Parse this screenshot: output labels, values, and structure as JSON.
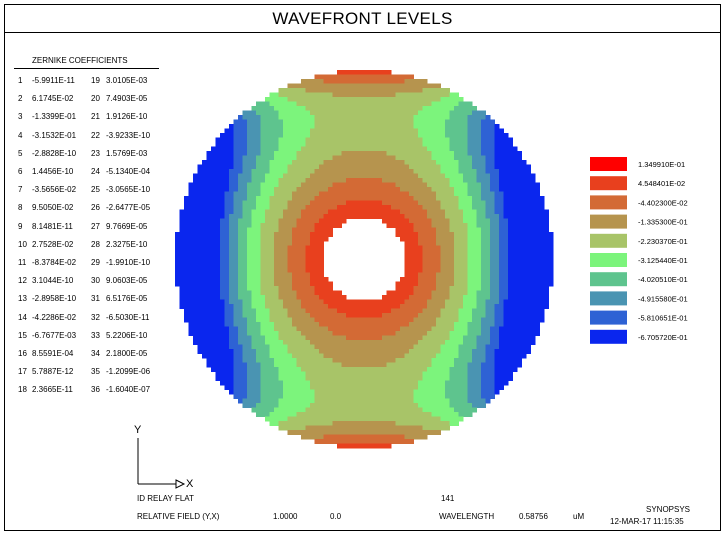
{
  "title": "WAVEFRONT LEVELS",
  "zernike": {
    "heading": "ZERNIKE COEFFICIENTS",
    "left": [
      {
        "n": "1",
        "v": "-5.9911E-11"
      },
      {
        "n": "2",
        "v": "6.1745E-02"
      },
      {
        "n": "3",
        "v": "-1.3399E-01"
      },
      {
        "n": "4",
        "v": "-3.1532E-01"
      },
      {
        "n": "5",
        "v": "-2.8828E-10"
      },
      {
        "n": "6",
        "v": "1.4456E-10"
      },
      {
        "n": "7",
        "v": "-3.5656E-02"
      },
      {
        "n": "8",
        "v": "9.5050E-02"
      },
      {
        "n": "9",
        "v": "8.1481E-11"
      },
      {
        "n": "10",
        "v": "2.7528E-02"
      },
      {
        "n": "11",
        "v": "-8.3784E-02"
      },
      {
        "n": "12",
        "v": "3.1044E-10"
      },
      {
        "n": "13",
        "v": "-2.8958E-10"
      },
      {
        "n": "14",
        "v": "-4.2286E-02"
      },
      {
        "n": "15",
        "v": "-6.7677E-03"
      },
      {
        "n": "16",
        "v": "8.5591E-04"
      },
      {
        "n": "17",
        "v": "5.7887E-12"
      },
      {
        "n": "18",
        "v": "2.3665E-11"
      }
    ],
    "right": [
      {
        "n": "19",
        "v": "3.0105E-03"
      },
      {
        "n": "20",
        "v": "7.4903E-05"
      },
      {
        "n": "21",
        "v": "1.9126E-10"
      },
      {
        "n": "22",
        "v": "-3.9233E-10"
      },
      {
        "n": "23",
        "v": "1.5769E-03"
      },
      {
        "n": "24",
        "v": "-5.1340E-04"
      },
      {
        "n": "25",
        "v": "-3.0565E-10"
      },
      {
        "n": "26",
        "v": "-2.6477E-05"
      },
      {
        "n": "27",
        "v": "9.7669E-05"
      },
      {
        "n": "28",
        "v": "2.3275E-10"
      },
      {
        "n": "29",
        "v": "-1.9910E-10"
      },
      {
        "n": "30",
        "v": "9.0603E-05"
      },
      {
        "n": "31",
        "v": "6.5176E-05"
      },
      {
        "n": "32",
        "v": "-6.5030E-11"
      },
      {
        "n": "33",
        "v": "5.2206E-10"
      },
      {
        "n": "34",
        "v": "2.1800E-05"
      },
      {
        "n": "35",
        "v": "-1.2099E-06"
      },
      {
        "n": "36",
        "v": "-1.6040E-07"
      }
    ]
  },
  "chart_data": {
    "type": "heatmap",
    "title": "WAVEFRONT LEVELS",
    "levels": [
      {
        "label": "1.349910E-01",
        "value": 0.134991,
        "color": "#ff0000"
      },
      {
        "label": "4.548401E-02",
        "value": 0.04548401,
        "color": "#e8401e"
      },
      {
        "label": "-4.402300E-02",
        "value": -0.044023,
        "color": "#d36a35"
      },
      {
        "label": "-1.335300E-01",
        "value": -0.13353,
        "color": "#b6944e"
      },
      {
        "label": "-2.230370E-01",
        "value": -0.223037,
        "color": "#a8c468"
      },
      {
        "label": "-3.125440E-01",
        "value": -0.312544,
        "color": "#7cf47c"
      },
      {
        "label": "-4.020510E-01",
        "value": -0.402051,
        "color": "#5ec48e"
      },
      {
        "label": "-4.915580E-01",
        "value": -0.491558,
        "color": "#4a94b2"
      },
      {
        "label": "-5.810651E-01",
        "value": -0.5810651,
        "color": "#2e62d4"
      },
      {
        "label": "-6.705720E-01",
        "value": -0.670572,
        "color": "#0a26ee"
      }
    ],
    "obscuration_ratio": 0.22,
    "field_center_color": "#cd5a2c"
  },
  "axes": {
    "y_label": "Y",
    "x_label": "X"
  },
  "footer": {
    "lens_name": "ID RELAY FLAT",
    "number": "141",
    "field_label": "RELATIVE FIELD (Y,X)",
    "field_y": "1.0000",
    "field_x": "0.0",
    "wavelength_label": "WAVELENGTH",
    "wavelength_value": "0.58756",
    "wavelength_unit": "uM",
    "vendor": "SYNOPSYS",
    "date": "12-MAR-17  11:15:35"
  }
}
